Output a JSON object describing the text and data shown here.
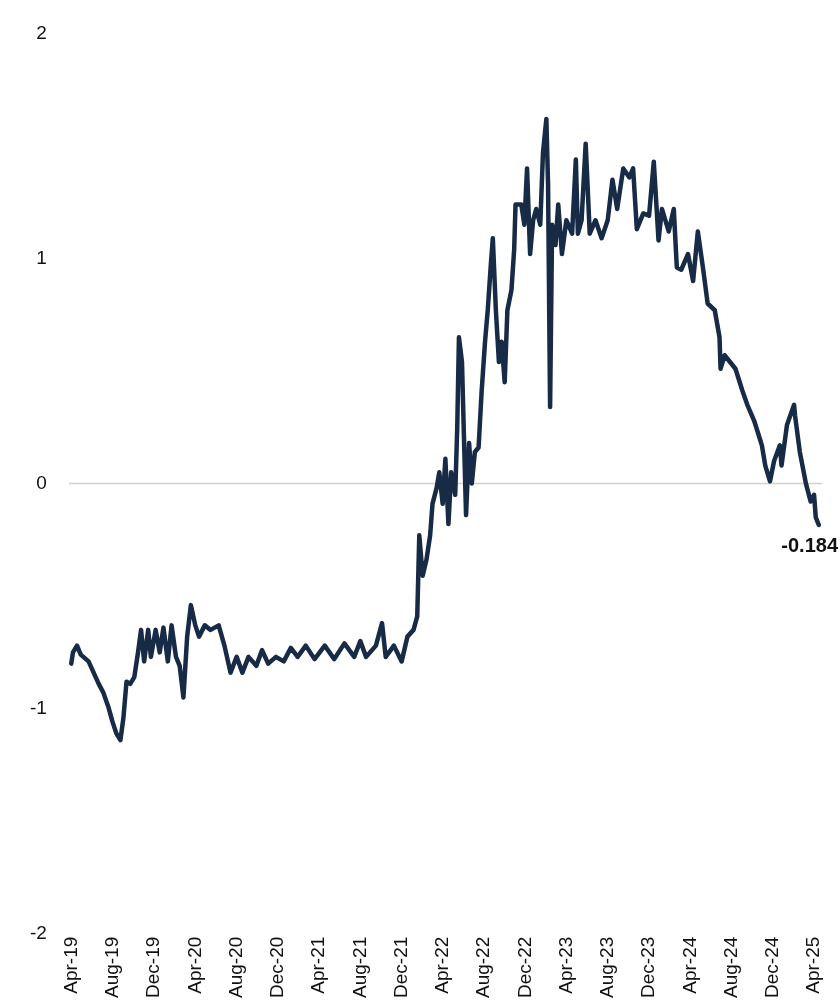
{
  "chart_data": {
    "type": "line",
    "x": [
      "2019-04-01",
      "2019-04-06",
      "2019-04-18",
      "2019-04-29",
      "2019-05-22",
      "2019-06-06",
      "2019-06-21",
      "2019-07-05",
      "2019-07-19",
      "2019-08-01",
      "2019-08-12",
      "2019-08-24",
      "2019-09-02",
      "2019-09-11",
      "2019-09-22",
      "2019-10-04",
      "2019-10-15",
      "2019-10-24",
      "2019-11-02",
      "2019-11-14",
      "2019-11-22",
      "2019-12-06",
      "2019-12-18",
      "2019-12-29",
      "2020-01-11",
      "2020-01-22",
      "2020-02-04",
      "2020-02-15",
      "2020-02-26",
      "2020-03-08",
      "2020-03-19",
      "2020-04-01",
      "2020-04-12",
      "2020-04-29",
      "2020-05-16",
      "2020-06-09",
      "2020-06-26",
      "2020-07-14",
      "2020-08-01",
      "2020-08-18",
      "2020-09-05",
      "2020-09-28",
      "2020-10-15",
      "2020-11-02",
      "2020-11-25",
      "2020-12-18",
      "2021-01-08",
      "2021-01-28",
      "2021-02-21",
      "2021-03-19",
      "2021-04-18",
      "2021-05-16",
      "2021-06-15",
      "2021-07-14",
      "2021-08-01",
      "2021-08-18",
      "2021-09-16",
      "2021-10-04",
      "2021-10-15",
      "2021-11-08",
      "2021-12-01",
      "2021-12-18",
      "2022-01-05",
      "2022-01-16",
      "2022-01-22",
      "2022-02-01",
      "2022-02-12",
      "2022-02-23",
      "2022-03-02",
      "2022-03-14",
      "2022-03-22",
      "2022-04-01",
      "2022-04-09",
      "2022-04-18",
      "2022-04-26",
      "2022-05-08",
      "2022-05-14",
      "2022-05-19",
      "2022-05-28",
      "2022-06-04",
      "2022-06-09",
      "2022-06-18",
      "2022-06-26",
      "2022-07-05",
      "2022-07-16",
      "2022-07-25",
      "2022-08-04",
      "2022-08-12",
      "2022-08-21",
      "2022-08-27",
      "2022-09-05",
      "2022-09-14",
      "2022-09-22",
      "2022-10-01",
      "2022-10-09",
      "2022-10-21",
      "2022-10-29",
      "2022-11-02",
      "2022-11-19",
      "2022-11-28",
      "2022-12-06",
      "2022-12-15",
      "2022-12-24",
      "2023-01-02",
      "2023-01-14",
      "2023-01-22",
      "2023-02-01",
      "2023-02-06",
      "2023-02-12",
      "2023-02-18",
      "2023-02-28",
      "2023-03-08",
      "2023-03-19",
      "2023-04-01",
      "2023-04-18",
      "2023-04-29",
      "2023-05-05",
      "2023-05-16",
      "2023-05-28",
      "2023-06-09",
      "2023-06-26",
      "2023-07-14",
      "2023-08-01",
      "2023-08-15",
      "2023-08-29",
      "2023-09-16",
      "2023-10-04",
      "2023-10-15",
      "2023-10-26",
      "2023-11-14",
      "2023-12-01",
      "2023-12-15",
      "2023-12-29",
      "2024-01-08",
      "2024-01-28",
      "2024-02-12",
      "2024-02-21",
      "2024-03-05",
      "2024-03-25",
      "2024-04-09",
      "2024-04-23",
      "2024-05-08",
      "2024-05-22",
      "2024-06-12",
      "2024-06-26",
      "2024-06-29",
      "2024-07-11",
      "2024-08-12",
      "2024-09-02",
      "2024-09-16",
      "2024-10-06",
      "2024-10-29",
      "2024-11-08",
      "2024-11-22",
      "2024-12-04",
      "2024-12-21",
      "2024-12-26",
      "2025-01-11",
      "2025-02-01",
      "2025-02-04",
      "2025-02-18",
      "2025-03-08",
      "2025-03-22",
      "2025-04-01",
      "2025-04-06",
      "2025-04-15"
    ],
    "series": [
      {
        "color": "#172a46",
        "values": [
          -0.8,
          -0.75,
          -0.72,
          -0.76,
          -0.79,
          -0.84,
          -0.89,
          -0.93,
          -0.99,
          -1.06,
          -1.11,
          -1.14,
          -1.04,
          -0.88,
          -0.89,
          -0.86,
          -0.75,
          -0.65,
          -0.79,
          -0.65,
          -0.77,
          -0.65,
          -0.75,
          -0.64,
          -0.79,
          -0.63,
          -0.77,
          -0.81,
          -0.95,
          -0.68,
          -0.54,
          -0.63,
          -0.68,
          -0.63,
          -0.65,
          -0.63,
          -0.72,
          -0.84,
          -0.77,
          -0.84,
          -0.77,
          -0.81,
          -0.74,
          -0.8,
          -0.77,
          -0.79,
          -0.73,
          -0.77,
          -0.72,
          -0.78,
          -0.72,
          -0.78,
          -0.71,
          -0.77,
          -0.7,
          -0.77,
          -0.72,
          -0.62,
          -0.77,
          -0.72,
          -0.79,
          -0.68,
          -0.65,
          -0.59,
          -0.23,
          -0.41,
          -0.34,
          -0.23,
          -0.09,
          -0.02,
          0.05,
          -0.09,
          0.11,
          -0.18,
          0.05,
          -0.05,
          0.25,
          0.65,
          0.54,
          0.14,
          -0.14,
          0.18,
          0.0,
          0.14,
          0.16,
          0.41,
          0.63,
          0.77,
          0.97,
          1.09,
          0.77,
          0.54,
          0.63,
          0.45,
          0.77,
          0.86,
          1.04,
          1.24,
          1.24,
          1.15,
          1.4,
          1.02,
          1.17,
          1.22,
          1.15,
          1.47,
          1.62,
          1.33,
          0.34,
          1.15,
          1.06,
          1.24,
          1.02,
          1.17,
          1.11,
          1.44,
          1.11,
          1.17,
          1.51,
          1.11,
          1.17,
          1.09,
          1.17,
          1.35,
          1.22,
          1.4,
          1.36,
          1.4,
          1.13,
          1.2,
          1.19,
          1.43,
          1.08,
          1.22,
          1.12,
          1.22,
          0.96,
          0.95,
          1.02,
          0.9,
          1.12,
          0.96,
          0.8,
          0.77,
          0.65,
          0.51,
          0.57,
          0.51,
          0.41,
          0.35,
          0.28,
          0.17,
          0.08,
          0.01,
          0.1,
          0.17,
          0.08,
          0.26,
          0.35,
          0.3,
          0.14,
          0.0,
          -0.08,
          -0.05,
          -0.15,
          -0.184
        ]
      }
    ],
    "xlim": [
      "2019-03-25",
      "2025-04-25"
    ],
    "xticks": [
      {
        "value": "2019-04",
        "label": "Apr-19"
      },
      {
        "value": "2019-08",
        "label": "Aug-19"
      },
      {
        "value": "2019-12",
        "label": "Dec-19"
      },
      {
        "value": "2020-04",
        "label": "Apr-20"
      },
      {
        "value": "2020-08",
        "label": "Aug-20"
      },
      {
        "value": "2020-12",
        "label": "Dec-20"
      },
      {
        "value": "2021-04",
        "label": "Apr-21"
      },
      {
        "value": "2021-08",
        "label": "Aug-21"
      },
      {
        "value": "2021-12",
        "label": "Dec-21"
      },
      {
        "value": "2022-04",
        "label": "Apr-22"
      },
      {
        "value": "2022-08",
        "label": "Aug-22"
      },
      {
        "value": "2022-12",
        "label": "Dec-22"
      },
      {
        "value": "2023-04",
        "label": "Apr-23"
      },
      {
        "value": "2023-08",
        "label": "Aug-23"
      },
      {
        "value": "2023-12",
        "label": "Dec-23"
      },
      {
        "value": "2024-04",
        "label": "Apr-24"
      },
      {
        "value": "2024-08",
        "label": "Aug-24"
      },
      {
        "value": "2024-12",
        "label": "Dec-24"
      },
      {
        "value": "2025-04",
        "label": "Apr-25"
      }
    ],
    "ylim": [
      -2,
      2
    ],
    "yticks": [
      -2,
      -1,
      0,
      1,
      2
    ],
    "ref_lines": [
      {
        "axis": "y",
        "value": 0,
        "color": "#d0d0d0"
      }
    ],
    "annotations": [
      {
        "text": "-0.184",
        "x": "2025-04-15",
        "y": -0.184
      }
    ],
    "grid": false,
    "legend": false,
    "marker": "none",
    "line_style": "solid"
  }
}
